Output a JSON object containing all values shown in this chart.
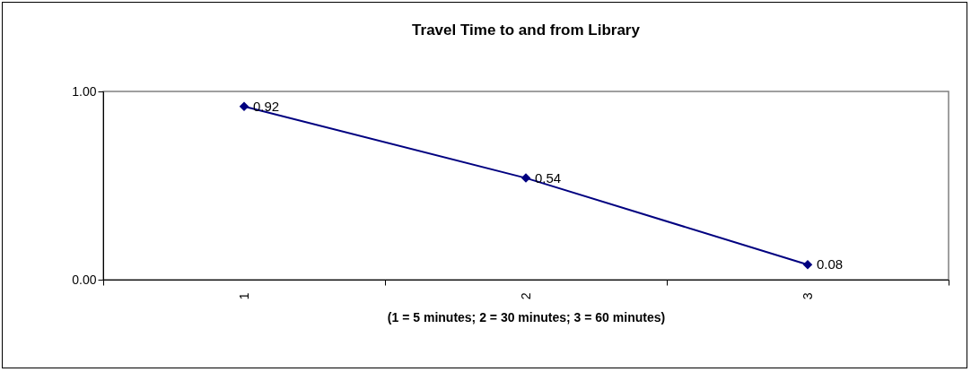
{
  "chart_data": {
    "type": "line",
    "title": "Travel Time to and from Library",
    "xlabel": "(1 = 5 minutes;  2 = 30 minutes;  3 = 60 minutes)",
    "categories": [
      "1",
      "2",
      "3"
    ],
    "series": [
      {
        "color": "#000080",
        "values": [
          0.92,
          0.54,
          0.08
        ]
      }
    ],
    "ylim": [
      0,
      1
    ],
    "yticks": [
      {
        "value": 0,
        "label": "0.00"
      },
      {
        "value": 1,
        "label": "1.00"
      }
    ],
    "grid": false,
    "legend": false,
    "marker": "diamond",
    "line_style": "solid",
    "data_labels": true
  }
}
